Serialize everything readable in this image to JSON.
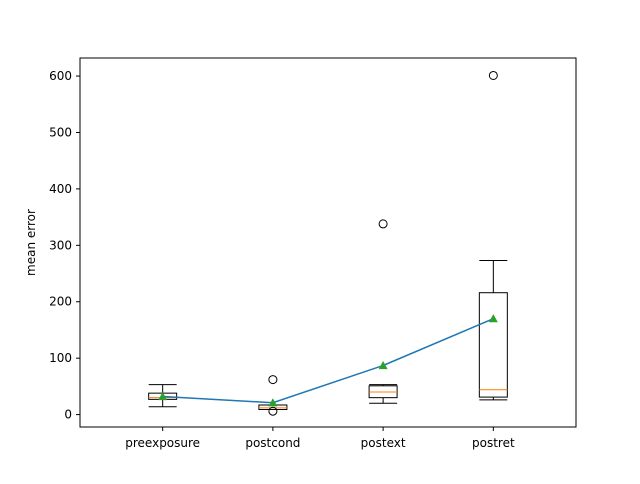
{
  "chart_data": {
    "type": "box",
    "title": "",
    "xlabel": "",
    "ylabel": "mean error",
    "categories": [
      "preexposure",
      "postcond",
      "postext",
      "postret"
    ],
    "ylim": [
      -22,
      632
    ],
    "yticks": [
      0,
      100,
      200,
      300,
      400,
      500,
      600
    ],
    "grid": false,
    "legend": "none",
    "boxes": [
      {
        "name": "preexposure",
        "whisker_low": 14,
        "q1": 27,
        "median": 30,
        "q3": 38,
        "whisker_high": 53,
        "mean": 32,
        "outliers": []
      },
      {
        "name": "postcond",
        "whisker_low": 9,
        "q1": 9,
        "median": 12,
        "q3": 17,
        "whisker_high": 17,
        "mean": 21,
        "outliers": [
          62,
          6
        ]
      },
      {
        "name": "postext",
        "whisker_low": 20,
        "q1": 30,
        "median": 40,
        "q3": 51,
        "whisker_high": 53,
        "mean": 87,
        "outliers": [
          338
        ]
      },
      {
        "name": "postret",
        "whisker_low": 26,
        "q1": 31,
        "median": 44,
        "q3": 216,
        "whisker_high": 273,
        "mean": 170,
        "outliers": [
          601
        ]
      }
    ],
    "mean_line": {
      "values": [
        32,
        21,
        87,
        170
      ]
    },
    "colors": {
      "box": "#000000",
      "median": "#ff7f0e",
      "mean_marker": "#2ca02c",
      "mean_line": "#1f77b4"
    }
  }
}
